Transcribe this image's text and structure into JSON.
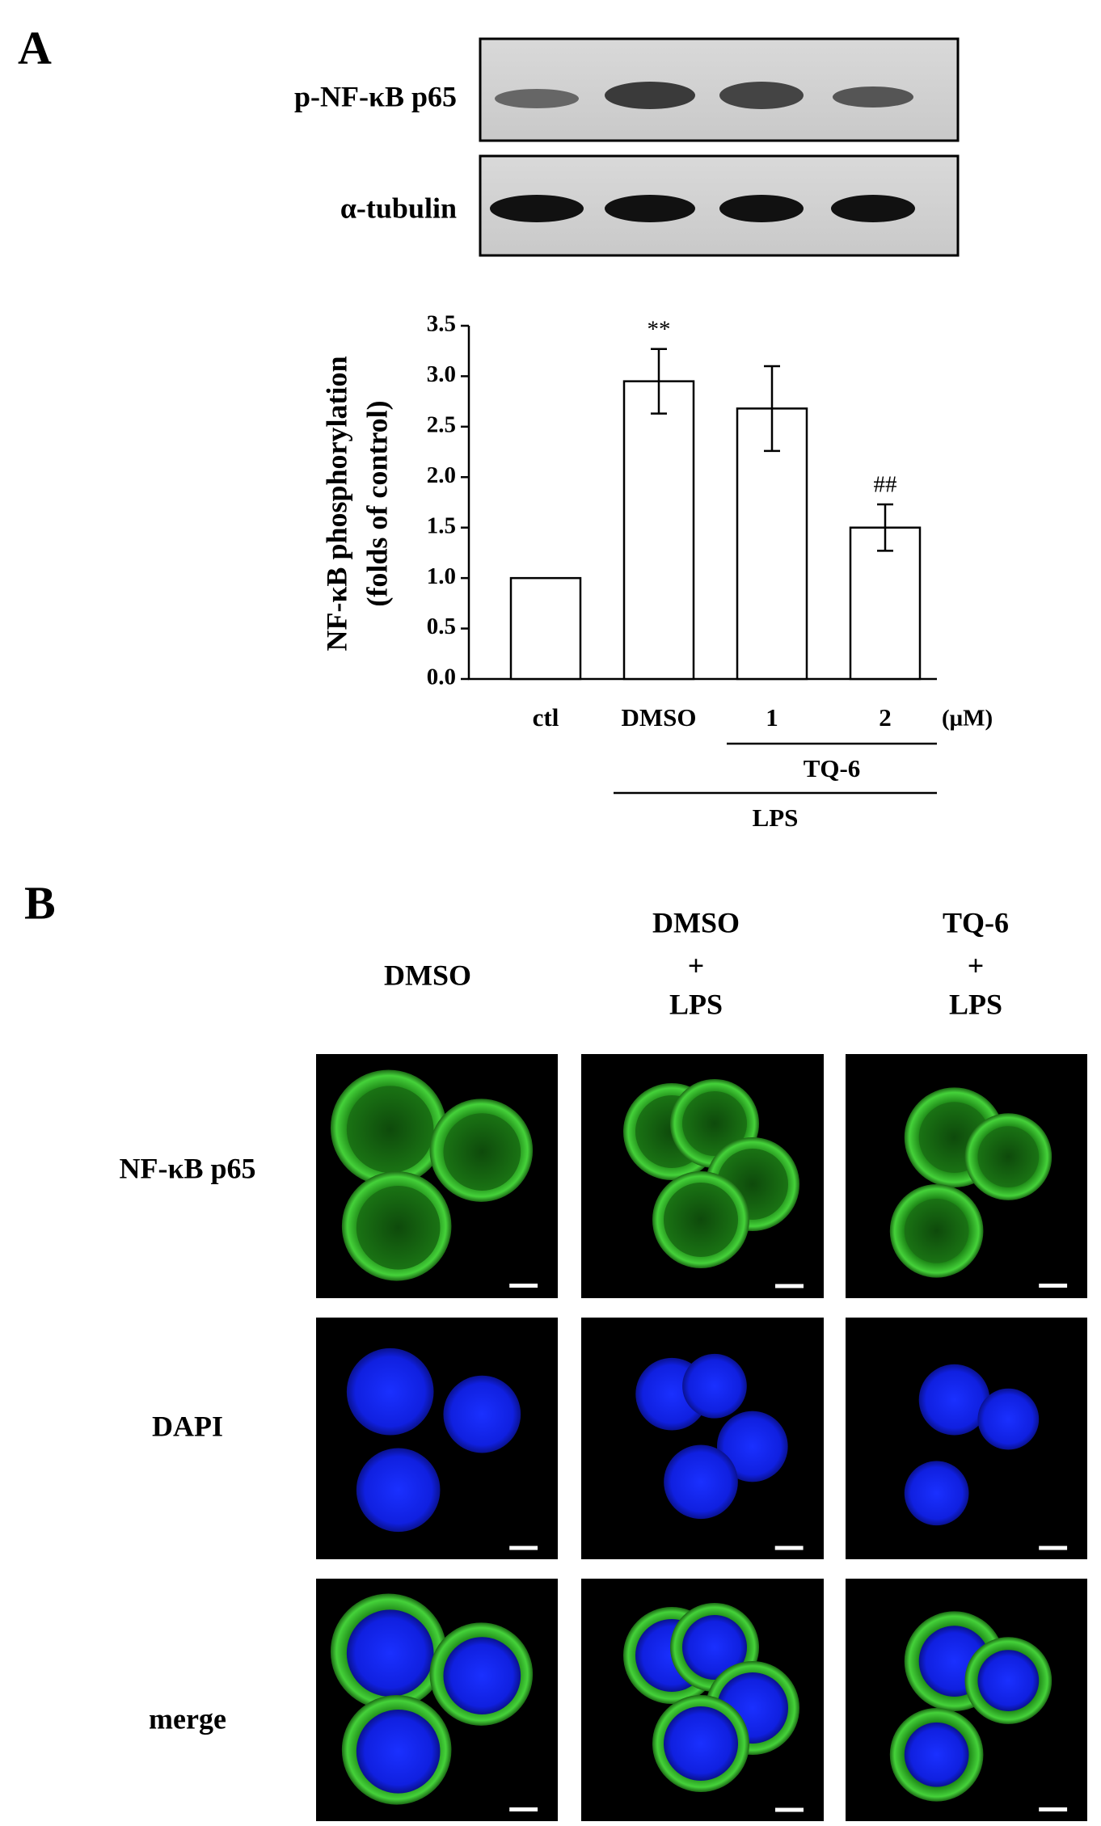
{
  "panel_a": {
    "label": "A",
    "blot_labels": [
      "p-NF-κB p65",
      "α-tubulin"
    ]
  },
  "chart_data": {
    "type": "bar",
    "y_label": [
      "NF-κB phosphorylation",
      "(folds of control)"
    ],
    "categories": [
      "ctl",
      "DMSO",
      "1",
      "2"
    ],
    "values": [
      1.0,
      2.95,
      2.68,
      1.5
    ],
    "errors": [
      null,
      0.32,
      0.42,
      0.23
    ],
    "annotations": [
      null,
      "**",
      null,
      "##"
    ],
    "unit": "(μM)",
    "groups": [
      {
        "label": "TQ-6",
        "from": "1",
        "to": "2"
      },
      {
        "label": "LPS",
        "from": "DMSO",
        "to": "2"
      }
    ],
    "color": "#ffffff",
    "edge_color": "#000000",
    "ylim": [
      0,
      3.5
    ],
    "yticks": [
      {
        "value": 0,
        "label": "0.0"
      },
      0.5,
      {
        "value": 1,
        "label": "1.0"
      },
      1.5,
      {
        "value": 2,
        "label": "2.0"
      },
      2.5,
      {
        "value": 3,
        "label": "3.0"
      },
      3.5
    ],
    "grid": false
  },
  "panel_b": {
    "label": "B",
    "columns": [
      [
        "DMSO"
      ],
      [
        "DMSO",
        "+",
        "LPS"
      ],
      [
        "TQ-6",
        "+",
        "LPS"
      ]
    ],
    "rows": [
      "NF-κB p65",
      "DAPI",
      "merge"
    ]
  }
}
